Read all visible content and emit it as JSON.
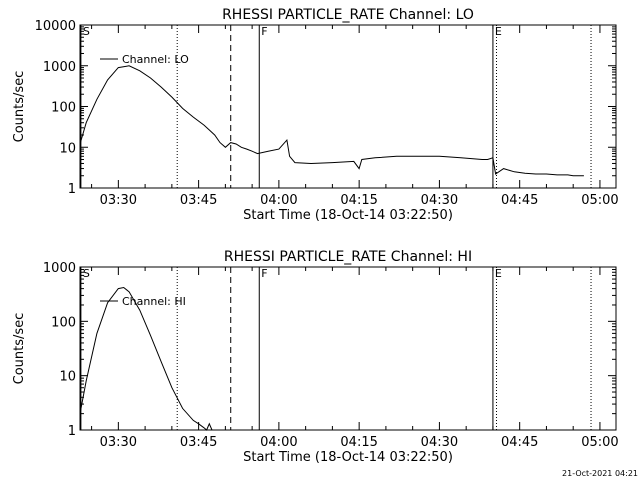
{
  "footer": {
    "stamp": "21-Oct-2021 04:21"
  },
  "chart_data": [
    {
      "type": "line",
      "title": "RHESSI PARTICLE_RATE Channel: LO",
      "xlabel": "Start Time (18-Oct-14 03:22:50)",
      "ylabel": "Counts/sec",
      "yscale": "log",
      "xlim": [
        "03:22:50",
        "05:03:00"
      ],
      "ylim": [
        1,
        10000
      ],
      "x_ticks": [
        "03:30",
        "03:45",
        "04:00",
        "04:15",
        "04:30",
        "04:45",
        "05:00"
      ],
      "y_ticks": [
        "1",
        "10",
        "100",
        "1000",
        "10000"
      ],
      "legend": "top-left",
      "series": [
        {
          "name": "Channel: LO",
          "x": [
            "03:22:50",
            "03:24:00",
            "03:26:00",
            "03:28:00",
            "03:30:00",
            "03:32:00",
            "03:34:00",
            "03:36:00",
            "03:38:00",
            "03:40:00",
            "03:42:00",
            "03:44:00",
            "03:46:00",
            "03:48:00",
            "03:49:00",
            "03:50:00",
            "03:51:00",
            "03:52:00",
            "03:53:00",
            "03:54:00",
            "03:55:00",
            "03:56:00",
            "03:58:00",
            "04:00:00",
            "04:01:30",
            "04:02:00",
            "04:03:00",
            "04:06:00",
            "04:10:00",
            "04:14:00",
            "04:15:00",
            "04:15:30",
            "04:18:00",
            "04:22:00",
            "04:26:00",
            "04:30:00",
            "04:34:00",
            "04:38:00",
            "04:39:00",
            "04:40:00",
            "04:40:30",
            "04:42:00",
            "04:44:00",
            "04:46:00",
            "04:48:00",
            "04:50:00",
            "04:52:00",
            "04:54:00",
            "04:55:00",
            "04:57:00"
          ],
          "y": [
            12,
            40,
            150,
            450,
            900,
            1000,
            750,
            500,
            300,
            170,
            90,
            55,
            35,
            20,
            13,
            10,
            13,
            12,
            10,
            9,
            8,
            7,
            8,
            9,
            15,
            6,
            4.2,
            4,
            4.2,
            4.5,
            3,
            5,
            5.5,
            6,
            6,
            6,
            5.5,
            5,
            5,
            5.5,
            2.2,
            3,
            2.5,
            2.3,
            2.2,
            2.2,
            2.1,
            2.1,
            2,
            2
          ]
        }
      ],
      "markers": [
        {
          "label": "S",
          "time": "03:23:00",
          "style": "solid"
        },
        {
          "label": "",
          "time": "03:41:00",
          "style": "dotted"
        },
        {
          "label": "",
          "time": "03:51:00",
          "style": "dashed"
        },
        {
          "label": "F",
          "time": "03:56:20",
          "style": "solid"
        },
        {
          "label": "E",
          "time": "04:40:00",
          "style": "solid"
        },
        {
          "label": "",
          "time": "04:40:40",
          "style": "dotted"
        },
        {
          "label": "",
          "time": "04:58:20",
          "style": "dotted"
        }
      ]
    },
    {
      "type": "line",
      "title": "RHESSI PARTICLE_RATE Channel: HI",
      "xlabel": "Start Time (18-Oct-14 03:22:50)",
      "ylabel": "Counts/sec",
      "yscale": "log",
      "xlim": [
        "03:22:50",
        "05:03:00"
      ],
      "ylim": [
        1,
        1000
      ],
      "x_ticks": [
        "03:30",
        "03:45",
        "04:00",
        "04:15",
        "04:30",
        "04:45",
        "05:00"
      ],
      "y_ticks": [
        "1",
        "10",
        "100",
        "1000"
      ],
      "legend": "top-left",
      "series": [
        {
          "name": "Channel: HI",
          "x": [
            "03:22:50",
            "03:24:00",
            "03:26:00",
            "03:28:00",
            "03:30:00",
            "03:31:00",
            "03:32:00",
            "03:34:00",
            "03:36:00",
            "03:38:00",
            "03:40:00",
            "03:42:00",
            "03:44:00",
            "03:45:00",
            "03:46:00",
            "03:46:30",
            "03:47:00",
            "03:47:30"
          ],
          "y": [
            2,
            8,
            60,
            220,
            400,
            420,
            350,
            160,
            55,
            18,
            6,
            2.5,
            1.5,
            1.3,
            1.1,
            1.0,
            1.3,
            1.0
          ]
        }
      ],
      "markers": [
        {
          "label": "S",
          "time": "03:23:00",
          "style": "solid"
        },
        {
          "label": "",
          "time": "03:41:00",
          "style": "dotted"
        },
        {
          "label": "",
          "time": "03:51:00",
          "style": "dashed"
        },
        {
          "label": "F",
          "time": "03:56:20",
          "style": "solid"
        },
        {
          "label": "E",
          "time": "04:40:00",
          "style": "solid"
        },
        {
          "label": "",
          "time": "04:40:40",
          "style": "dotted"
        },
        {
          "label": "",
          "time": "04:58:20",
          "style": "dotted"
        }
      ]
    }
  ]
}
